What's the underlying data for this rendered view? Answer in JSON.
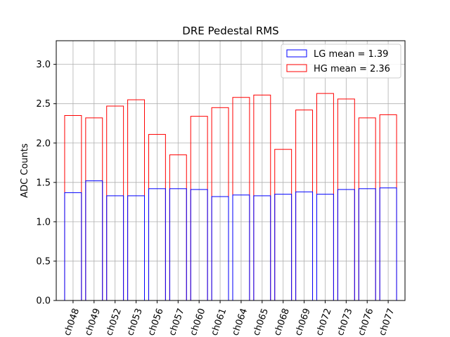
{
  "chart_data": {
    "type": "bar",
    "title": "DRE Pedestal RMS",
    "xlabel": "",
    "ylabel": "ADC Counts",
    "ylim": [
      0,
      3.3
    ],
    "yticks": [
      0.0,
      0.5,
      1.0,
      1.5,
      2.0,
      2.5,
      3.0
    ],
    "ytick_labels": [
      "0.0",
      "0.5",
      "1.0",
      "1.5",
      "2.0",
      "2.5",
      "3.0"
    ],
    "grid": true,
    "legend_position": "top-right",
    "categories": [
      "ch048",
      "ch049",
      "ch052",
      "ch053",
      "ch056",
      "ch057",
      "ch060",
      "ch061",
      "ch064",
      "ch065",
      "ch068",
      "ch069",
      "ch072",
      "ch073",
      "ch076",
      "ch077"
    ],
    "series": [
      {
        "name": "LG mean = 1.39",
        "color": "#0000ff",
        "values": [
          1.37,
          1.52,
          1.33,
          1.33,
          1.42,
          1.42,
          1.41,
          1.32,
          1.34,
          1.33,
          1.35,
          1.38,
          1.35,
          1.41,
          1.42,
          1.43
        ]
      },
      {
        "name": "HG mean = 2.36",
        "color": "#ff0000",
        "values": [
          2.35,
          2.32,
          2.47,
          2.55,
          2.11,
          1.85,
          2.34,
          2.45,
          2.58,
          2.61,
          1.92,
          2.42,
          2.63,
          2.56,
          2.32,
          2.36
        ]
      }
    ]
  }
}
